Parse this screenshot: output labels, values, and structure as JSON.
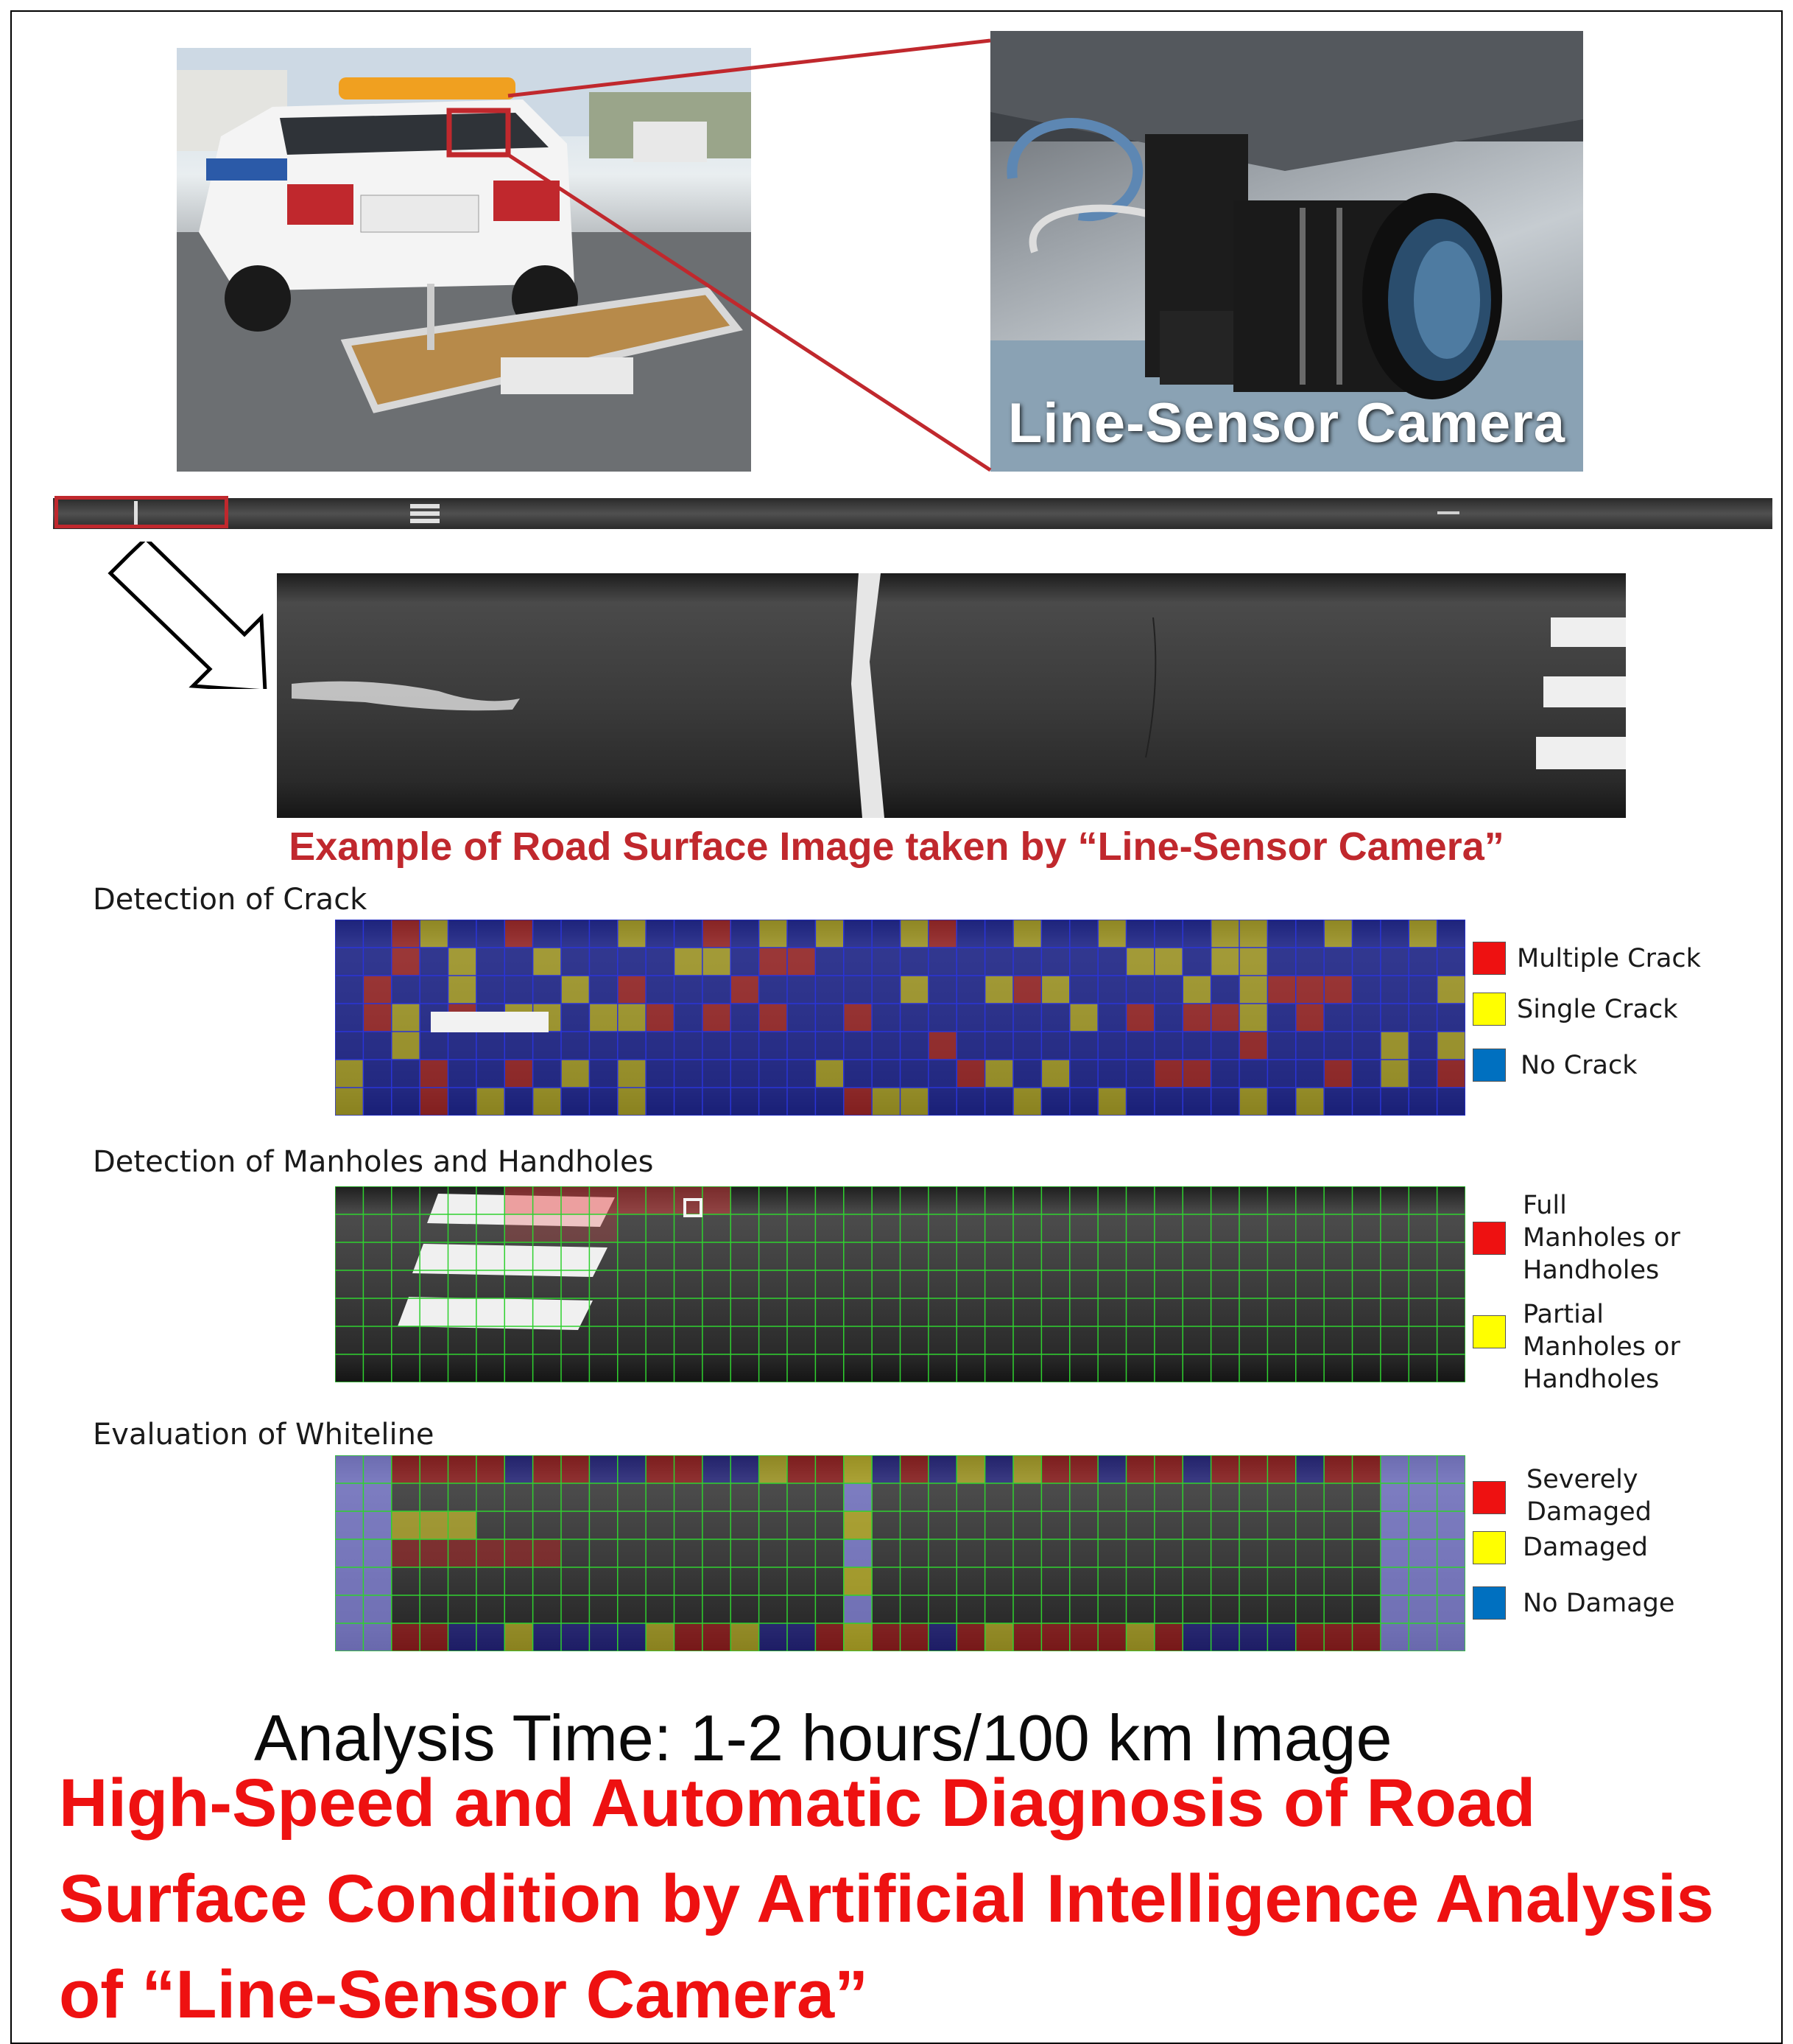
{
  "photos": {
    "car": {
      "icon": "survey-vehicle-photo"
    },
    "camera": {
      "icon": "line-sensor-camera-photo",
      "caption": "Line-Sensor Camera"
    }
  },
  "road_image_caption": "Example of Road Surface Image taken by “Line-Sensor Camera”",
  "sections": {
    "crack": {
      "title": "Detection of Crack",
      "legend": [
        {
          "color": "#ee1111",
          "label": "Multiple Crack"
        },
        {
          "color": "#ffff00",
          "label": "Single Crack"
        },
        {
          "color": "#0070c0",
          "label": "No Crack"
        }
      ]
    },
    "manhole": {
      "title": "Detection of Manholes and Handholes",
      "legend": [
        {
          "color": "#ee1111",
          "lines": [
            "Full",
            "Manholes or",
            "Handholes"
          ]
        },
        {
          "color": "#ffff00",
          "lines": [
            "Partial",
            "Manholes or",
            "Handholes"
          ]
        }
      ]
    },
    "whiteline": {
      "title": "Evaluation of Whiteline",
      "legend": [
        {
          "color": "#ee1111",
          "lines": [
            "Severely",
            "Damaged"
          ]
        },
        {
          "color": "#ffff00",
          "label": "Damaged"
        },
        {
          "color": "#0070c0",
          "label": "No Damage"
        }
      ]
    }
  },
  "analysis_time": "Analysis Time: 1-2 hours/100 km Image",
  "headline": "High-Speed and Automatic Diagnosis of Road Surface Condition by Artificial Intelligence Analysis of “Line-Sensor Camera”",
  "colors": {
    "accent_red": "#c0282d",
    "headline_red": "#ee1111",
    "zoom_line": "#c0282d"
  }
}
